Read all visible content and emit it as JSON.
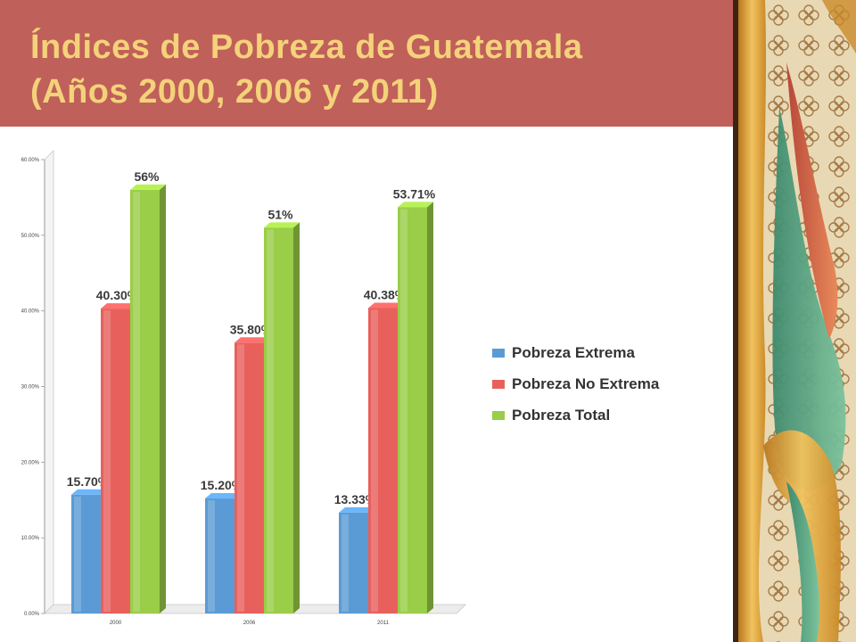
{
  "slide": {
    "title_line1": "Índices de Pobreza de Guatemala",
    "title_line2": "(Años 2000, 2006 y 2011)"
  },
  "colors": {
    "title_band": "#c0605a",
    "title_text": "#f4d27a",
    "pobreza_extrema": "#5b9bd5",
    "pobreza_no_extrema": "#e8605c",
    "pobreza_total": "#9acd48"
  },
  "chart_data": {
    "type": "bar",
    "title": "",
    "xlabel": "",
    "ylabel": "",
    "ylim": [
      0,
      60
    ],
    "yticks": [
      "0.00%",
      "10.00%",
      "20.00%",
      "30.00%",
      "40.00%",
      "50.00%",
      "60.00%"
    ],
    "categories": [
      "2000",
      "2006",
      "2011"
    ],
    "series": [
      {
        "name": "Pobreza Extrema",
        "color": "#5b9bd5",
        "values": [
          15.7,
          15.2,
          13.33
        ],
        "labels": [
          "15.70%",
          "15.20%",
          "13.33%"
        ]
      },
      {
        "name": "Pobreza No Extrema",
        "color": "#e8605c",
        "values": [
          40.3,
          35.8,
          40.38
        ],
        "labels": [
          "40.30%",
          "35.80%",
          "40.38%"
        ]
      },
      {
        "name": "Pobreza Total",
        "color": "#9acd48",
        "values": [
          56,
          51,
          53.71
        ],
        "labels": [
          "56%",
          "51%",
          "53.71%"
        ]
      }
    ],
    "legend_position": "right",
    "grid": false,
    "style": "3d-bar"
  }
}
